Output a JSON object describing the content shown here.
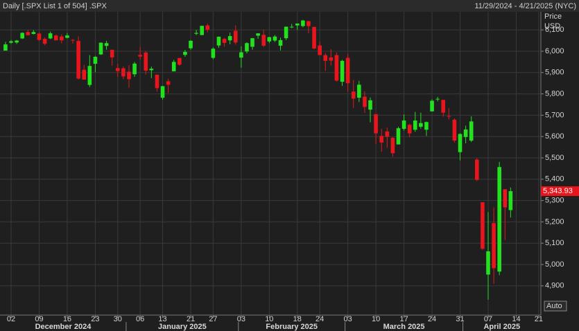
{
  "chart_data": {
    "type": "candlestick",
    "title": "Daily [.SPX List 1 of 504] .SPX",
    "subtitle": "11/29/2024 - 4/21/2025 (NYC)",
    "y_axis_label": "Price",
    "y_axis_unit": "USD",
    "button": "Auto",
    "up_color": "#22e11f",
    "down_color": "#e8161c",
    "grid": true,
    "x": [
      "2024-11-29",
      "2024-12-02",
      "2024-12-03",
      "2024-12-04",
      "2024-12-05",
      "2024-12-06",
      "2024-12-09",
      "2024-12-10",
      "2024-12-11",
      "2024-12-12",
      "2024-12-13",
      "2024-12-16",
      "2024-12-17",
      "2024-12-18",
      "2024-12-19",
      "2024-12-20",
      "2024-12-23",
      "2024-12-24",
      "2024-12-26",
      "2024-12-27",
      "2024-12-30",
      "2024-12-31",
      "2025-01-02",
      "2025-01-03",
      "2025-01-06",
      "2025-01-07",
      "2025-01-08",
      "2025-01-10",
      "2025-01-13",
      "2025-01-14",
      "2025-01-15",
      "2025-01-16",
      "2025-01-17",
      "2025-01-21",
      "2025-01-22",
      "2025-01-23",
      "2025-01-24",
      "2025-01-27",
      "2025-01-28",
      "2025-01-29",
      "2025-01-30",
      "2025-01-31",
      "2025-02-03",
      "2025-02-04",
      "2025-02-05",
      "2025-02-06",
      "2025-02-07",
      "2025-02-10",
      "2025-02-11",
      "2025-02-12",
      "2025-02-13",
      "2025-02-14",
      "2025-02-18",
      "2025-02-19",
      "2025-02-20",
      "2025-02-21",
      "2025-02-24",
      "2025-02-25",
      "2025-02-26",
      "2025-02-27",
      "2025-02-28",
      "2025-03-03",
      "2025-03-04",
      "2025-03-05",
      "2025-03-06",
      "2025-03-07",
      "2025-03-10",
      "2025-03-11",
      "2025-03-12",
      "2025-03-13",
      "2025-03-14",
      "2025-03-17",
      "2025-03-18",
      "2025-03-19",
      "2025-03-20",
      "2025-03-21",
      "2025-03-24",
      "2025-03-25",
      "2025-03-26",
      "2025-03-27",
      "2025-03-28",
      "2025-03-31",
      "2025-04-01",
      "2025-04-02",
      "2025-04-03",
      "2025-04-04",
      "2025-04-07",
      "2025-04-08",
      "2025-04-09",
      "2025-04-10",
      "2025-04-11",
      "2025-04-14",
      "2025-04-15",
      "2025-04-16",
      "2025-04-17",
      "2025-04-21"
    ],
    "open": [
      6003,
      6040,
      6041,
      6060,
      6090,
      6081,
      6083,
      6058,
      6060,
      6074,
      6069,
      6063,
      6053,
      6048,
      5913,
      5842,
      5941,
      5985,
      6025,
      6007,
      5921,
      5920,
      5904,
      5892,
      5983,
      5994,
      5911,
      5890,
      5782,
      5859,
      5906,
      5968,
      5983,
      6014,
      6082,
      6076,
      6121,
      5969,
      6027,
      6058,
      6051,
      6096,
      5970,
      5999,
      6021,
      6073,
      6077,
      6046,
      6050,
      6026,
      6061,
      6115,
      6121,
      6118,
      6141,
      6114,
      6027,
      5982,
      5971,
      5982,
      5857,
      5969,
      5811,
      5782,
      5787,
      5726,
      5705,
      5603,
      5624,
      5594,
      5563,
      5636,
      5655,
      5632,
      5646,
      5632,
      5718,
      5775,
      5772,
      5696,
      5679,
      5527,
      5598,
      5581,
      5492,
      5292,
      4953,
      5194,
      4967,
      5353,
      5255,
      null,
      null,
      null,
      null,
      null
    ],
    "high": [
      6044,
      6053,
      6053,
      6089,
      6100,
      6099,
      6089,
      6065,
      6092,
      6079,
      6079,
      6085,
      6057,
      6070,
      5936,
      5982,
      5978,
      6041,
      6049,
      6007,
      5941,
      5929,
      5935,
      5950,
      6021,
      6001,
      5928,
      5890,
      5838,
      5871,
      5960,
      5969,
      6006,
      6052,
      6100,
      6119,
      6129,
      6018,
      6069,
      6062,
      6087,
      6121,
      6023,
      6042,
      6062,
      6084,
      6101,
      6068,
      6076,
      6064,
      6116,
      6128,
      6130,
      6147,
      6143,
      6115,
      6044,
      5992,
      6009,
      5994,
      5960,
      5987,
      5865,
      5861,
      5812,
      5783,
      5706,
      5636,
      5642,
      5597,
      5646,
      5704,
      5660,
      5716,
      5712,
      5670,
      5775,
      5786,
      5772,
      5733,
      5685,
      5615,
      5651,
      5695,
      5499,
      5292,
      5246,
      5268,
      5481,
      5353,
      5361,
      null,
      null,
      null,
      null,
      null
    ],
    "low": [
      6003,
      6035,
      6034,
      6057,
      6074,
      6079,
      6048,
      6028,
      6057,
      6051,
      6037,
      6060,
      6036,
      5867,
      5866,
      5832,
      5902,
      5983,
      6007,
      5932,
      5880,
      5869,
      5829,
      5880,
      5961,
      5890,
      5874,
      5810,
      5773,
      5805,
      5906,
      5932,
      5974,
      6007,
      6076,
      6075,
      6089,
      5962,
      6016,
      6021,
      6033,
      6031,
      5923,
      5990,
      6007,
      6058,
      6020,
      6038,
      6043,
      6004,
      6052,
      6108,
      6100,
      6112,
      6084,
      6009,
      5982,
      5908,
      5933,
      5858,
      5837,
      5810,
      5733,
      5762,
      5711,
      5667,
      5566,
      5529,
      5547,
      5505,
      5563,
      5628,
      5597,
      5622,
      5637,
      5603,
      5718,
      5765,
      5693,
      5680,
      5572,
      5488,
      5568,
      5574,
      5391,
      5069,
      4835,
      4910,
      4950,
      5115,
      5220,
      null,
      null,
      null,
      null,
      null
    ],
    "close": [
      6032,
      6047,
      6050,
      6086,
      6075,
      6090,
      6053,
      6035,
      6084,
      6051,
      6051,
      6074,
      6051,
      5872,
      5867,
      5931,
      5974,
      6040,
      6038,
      5971,
      5907,
      5882,
      5869,
      5942,
      5975,
      5909,
      5918,
      5827,
      5836,
      5843,
      5950,
      5937,
      5997,
      6049,
      6086,
      6119,
      6101,
      6012,
      6068,
      6039,
      6071,
      6041,
      5995,
      6038,
      6061,
      6084,
      6026,
      6066,
      6069,
      6052,
      6115,
      6115,
      6130,
      6144,
      6118,
      6013,
      5982,
      5955,
      5956,
      5862,
      5955,
      5850,
      5778,
      5843,
      5739,
      5770,
      5615,
      5572,
      5599,
      5522,
      5639,
      5675,
      5615,
      5675,
      5663,
      5668,
      5768,
      5777,
      5712,
      5693,
      5581,
      5612,
      5633,
      5671,
      5397,
      5074,
      5062,
      4983,
      5457,
      5268,
      5343.93,
      null,
      null,
      null,
      null,
      null
    ],
    "current_price": {
      "value": 5343.93,
      "label": "5,343.93"
    },
    "ylim": [
      4763,
      6185
    ],
    "yticks": [
      {
        "value": 4900,
        "label": "4,900"
      },
      {
        "value": 5000,
        "label": "5,000"
      },
      {
        "value": 5100,
        "label": "5,100"
      },
      {
        "value": 5200,
        "label": "5,200"
      },
      {
        "value": 5300,
        "label": "5,300"
      },
      {
        "value": 5400,
        "label": "5,400"
      },
      {
        "value": 5500,
        "label": "5,500"
      },
      {
        "value": 5600,
        "label": "5,600"
      },
      {
        "value": 5700,
        "label": "5,700"
      },
      {
        "value": 5800,
        "label": "5,800"
      },
      {
        "value": 5900,
        "label": "5,900"
      },
      {
        "value": 6000,
        "label": "6,000"
      },
      {
        "value": 6100,
        "label": "6,100"
      }
    ],
    "xticks": [
      {
        "value": "2024-12-02",
        "label": "02"
      },
      {
        "value": "2024-12-09",
        "label": "09"
      },
      {
        "value": "2024-12-16",
        "label": "16"
      },
      {
        "value": "2024-12-23",
        "label": "23"
      },
      {
        "value": "2024-12-30",
        "label": "30"
      },
      {
        "value": "2025-01-06",
        "label": "06"
      },
      {
        "value": "2025-01-13",
        "label": "13"
      },
      {
        "value": "2025-01-21",
        "label": "21"
      },
      {
        "value": "2025-01-27",
        "label": "27"
      },
      {
        "value": "2025-02-03",
        "label": "03"
      },
      {
        "value": "2025-02-10",
        "label": "10"
      },
      {
        "value": "2025-02-18",
        "label": "18"
      },
      {
        "value": "2025-02-24",
        "label": "24"
      },
      {
        "value": "2025-03-03",
        "label": "03"
      },
      {
        "value": "2025-03-10",
        "label": "10"
      },
      {
        "value": "2025-03-17",
        "label": "17"
      },
      {
        "value": "2025-03-24",
        "label": "24"
      },
      {
        "value": "2025-03-31",
        "label": "31"
      },
      {
        "value": "2025-04-07",
        "label": "07"
      },
      {
        "value": "2025-04-14",
        "label": "14"
      },
      {
        "value": "2025-04-21",
        "label": "21"
      }
    ],
    "month_labels": [
      "December 2024",
      "January 2025",
      "February 2025",
      "March 2025",
      "April 2025"
    ]
  }
}
